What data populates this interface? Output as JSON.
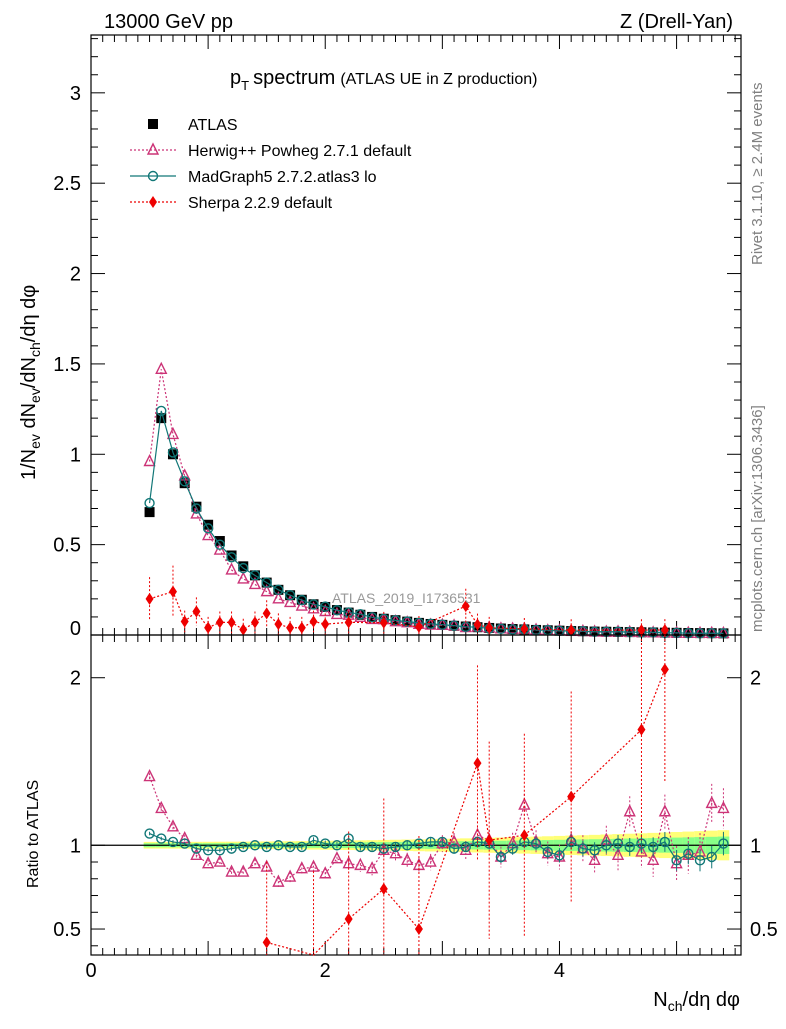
{
  "header": {
    "left": "13000 GeV pp",
    "right": "Z (Drell-Yan)"
  },
  "side_labels": {
    "rivet": "Rivet 3.1.10, ≥ 2.4M events",
    "mcplots": "mcplots.cern.ch [arXiv:1306.3436]"
  },
  "colors": {
    "atlas": "#000000",
    "herwig": "#cc3377",
    "madgraph": "#117777",
    "sherpa": "#ee0000",
    "band_green": "#88ff88",
    "band_yellow": "#ffff77"
  },
  "chart_data": [
    {
      "type": "scatter",
      "panel": "main",
      "title_main": "p",
      "title_sub": "T",
      "title_rest": "spectrum",
      "title_extra": "(ATLAS UE in Z production)",
      "ylabel": "1/N_ev dN_ev/dN_ch/dη dφ",
      "xlabel": "N_ch/dη dφ",
      "watermark": "ATLAS_2019_I1736531",
      "xlim": [
        0,
        5.55
      ],
      "ylim": [
        0,
        3.32
      ],
      "yticks": [
        0,
        0.5,
        1,
        1.5,
        2,
        2.5,
        3
      ],
      "ytick_labels": [
        "0",
        "0.5",
        "1",
        "1.5",
        "2",
        "2.5",
        "3"
      ],
      "legend_position": "top-left",
      "series": [
        {
          "name": "ATLAS",
          "key": "atlas",
          "marker": "square",
          "x": [
            0.5,
            0.6,
            0.7,
            0.8,
            0.9,
            1.0,
            1.1,
            1.2,
            1.3,
            1.4,
            1.5,
            1.6,
            1.7,
            1.8,
            1.9,
            2.0,
            2.1,
            2.2,
            2.3,
            2.4,
            2.5,
            2.6,
            2.7,
            2.8,
            2.9,
            3.0,
            3.1,
            3.2,
            3.3,
            3.4,
            3.5,
            3.6,
            3.7,
            3.8,
            3.9,
            4.0,
            4.1,
            4.2,
            4.3,
            4.4,
            4.5,
            4.6,
            4.7,
            4.8,
            4.9,
            5.0,
            5.1,
            5.2,
            5.3,
            5.4
          ],
          "y": [
            0.68,
            1.2,
            1.0,
            0.84,
            0.71,
            0.61,
            0.52,
            0.44,
            0.38,
            0.33,
            0.29,
            0.25,
            0.22,
            0.195,
            0.17,
            0.155,
            0.138,
            0.124,
            0.112,
            0.1,
            0.09,
            0.082,
            0.074,
            0.067,
            0.061,
            0.056,
            0.051,
            0.047,
            0.043,
            0.039,
            0.036,
            0.033,
            0.031,
            0.028,
            0.026,
            0.024,
            0.022,
            0.021,
            0.019,
            0.018,
            0.017,
            0.016,
            0.015,
            0.014,
            0.013,
            0.012,
            0.011,
            0.0105,
            0.01,
            0.009
          ]
        },
        {
          "name": "Herwig++ Powheg 2.7.1 default",
          "key": "herwig",
          "marker": "triangle",
          "x": [
            0.5,
            0.6,
            0.7,
            0.8,
            0.9,
            1.0,
            1.1,
            1.2,
            1.3,
            1.4,
            1.5,
            1.6,
            1.7,
            1.8,
            1.9,
            2.0,
            2.1,
            2.2,
            2.3,
            2.4,
            2.5,
            2.6,
            2.7,
            2.8,
            2.9,
            3.0,
            3.1,
            3.2,
            3.3,
            3.4,
            3.5,
            3.6,
            3.7,
            3.8,
            3.9,
            4.0,
            4.1,
            4.2,
            4.3,
            4.4,
            4.5,
            4.6,
            4.7,
            4.8,
            4.9,
            5.0,
            5.1,
            5.2,
            5.3,
            5.4
          ],
          "y": [
            0.96,
            1.47,
            1.11,
            0.88,
            0.67,
            0.55,
            0.47,
            0.36,
            0.31,
            0.28,
            0.24,
            0.2,
            0.18,
            0.16,
            0.145,
            0.13,
            0.114,
            0.11,
            0.098,
            0.086,
            0.085,
            0.074,
            0.068,
            0.059,
            0.055,
            0.054,
            0.051,
            0.041,
            0.045,
            0.04,
            0.034,
            0.033,
            0.033,
            0.027,
            0.024,
            0.023,
            0.021,
            0.02,
            0.017,
            0.016,
            0.017,
            0.015,
            0.014,
            0.012,
            0.013,
            0.011,
            0.01,
            0.0095,
            0.0095,
            0.0085
          ]
        },
        {
          "name": "MadGraph5 2.7.2.atlas3 lo",
          "key": "madgraph",
          "marker": "circle",
          "x": [
            0.5,
            0.6,
            0.7,
            0.8,
            0.9,
            1.0,
            1.1,
            1.2,
            1.3,
            1.4,
            1.5,
            1.6,
            1.7,
            1.8,
            1.9,
            2.0,
            2.1,
            2.2,
            2.3,
            2.4,
            2.5,
            2.6,
            2.7,
            2.8,
            2.9,
            3.0,
            3.1,
            3.2,
            3.3,
            3.4,
            3.5,
            3.6,
            3.7,
            3.8,
            3.9,
            4.0,
            4.1,
            4.2,
            4.3,
            4.4,
            4.5,
            4.6,
            4.7,
            4.8,
            4.9,
            5.0,
            5.1,
            5.2,
            5.3,
            5.4
          ],
          "y": [
            0.73,
            1.24,
            1.01,
            0.85,
            0.7,
            0.59,
            0.5,
            0.43,
            0.37,
            0.33,
            0.29,
            0.25,
            0.22,
            0.193,
            0.169,
            0.157,
            0.137,
            0.125,
            0.115,
            0.098,
            0.089,
            0.081,
            0.074,
            0.067,
            0.062,
            0.057,
            0.052,
            0.045,
            0.044,
            0.036,
            0.034,
            0.031,
            0.032,
            0.028,
            0.027,
            0.023,
            0.023,
            0.021,
            0.018,
            0.018,
            0.018,
            0.016,
            0.015,
            0.015,
            0.012,
            0.012,
            0.01,
            0.0095,
            0.0095,
            0.009
          ]
        },
        {
          "name": "Sherpa 2.2.9 default",
          "key": "sherpa",
          "marker": "diamond",
          "x": [
            0.5,
            0.7,
            0.8,
            0.9,
            1.0,
            1.1,
            1.2,
            1.3,
            1.4,
            1.5,
            1.6,
            1.7,
            1.8,
            1.9,
            2.0,
            2.2,
            2.5,
            2.8,
            3.2,
            3.3,
            3.4,
            3.7,
            4.1,
            4.7,
            4.9
          ],
          "y": [
            0.2,
            0.24,
            0.075,
            0.13,
            0.04,
            0.07,
            0.07,
            0.03,
            0.07,
            0.12,
            0.06,
            0.04,
            0.04,
            0.075,
            0.06,
            0.07,
            0.068,
            0.045,
            0.16,
            0.058,
            0.04,
            0.034,
            0.027,
            0.027,
            0.028
          ]
        }
      ]
    },
    {
      "type": "scatter",
      "panel": "ratio",
      "ylabel": "Ratio to ATLAS",
      "xlim": [
        0,
        5.55
      ],
      "ylim": [
        0.345,
        2.255
      ],
      "yticks": [
        0.5,
        1,
        2
      ],
      "ytick_labels": [
        "0.5",
        "1",
        "2"
      ],
      "xticks": [
        0,
        2,
        4
      ],
      "xtick_labels": [
        "0",
        "2",
        "4"
      ],
      "series": [
        {
          "name": "Herwig++ Powheg 2.7.1 default",
          "key": "herwig",
          "marker": "triangle",
          "x": [
            0.5,
            0.6,
            0.7,
            0.8,
            0.9,
            1.0,
            1.1,
            1.2,
            1.3,
            1.4,
            1.5,
            1.6,
            1.7,
            1.8,
            1.9,
            2.0,
            2.1,
            2.2,
            2.3,
            2.4,
            2.5,
            2.6,
            2.7,
            2.8,
            2.9,
            3.0,
            3.1,
            3.2,
            3.3,
            3.4,
            3.5,
            3.6,
            3.7,
            3.8,
            3.9,
            4.0,
            4.1,
            4.2,
            4.3,
            4.4,
            4.5,
            4.6,
            4.7,
            4.8,
            4.9,
            5.0,
            5.1,
            5.2,
            5.3,
            5.4
          ],
          "y": [
            1.41,
            1.22,
            1.11,
            1.04,
            0.94,
            0.89,
            0.9,
            0.84,
            0.84,
            0.89,
            0.87,
            0.78,
            0.81,
            0.86,
            0.87,
            0.83,
            0.92,
            0.89,
            0.88,
            0.86,
            0.97,
            0.95,
            0.91,
            0.88,
            0.9,
            1.01,
            1.02,
            0.97,
            1.06,
            1.03,
            0.93,
            1.01,
            1.24,
            1.02,
            0.95,
            0.93,
            1.03,
            0.98,
            0.91,
            1.03,
            0.94,
            1.2,
            0.96,
            0.91,
            1.2,
            0.89,
            0.94,
            0.96,
            1.25,
            1.22
          ]
        },
        {
          "name": "MadGraph5 2.7.2.atlas3 lo",
          "key": "madgraph",
          "marker": "circle",
          "x": [
            0.5,
            0.6,
            0.7,
            0.8,
            0.9,
            1.0,
            1.1,
            1.2,
            1.3,
            1.4,
            1.5,
            1.6,
            1.7,
            1.8,
            1.9,
            2.0,
            2.1,
            2.2,
            2.3,
            2.4,
            2.5,
            2.6,
            2.7,
            2.8,
            2.9,
            3.0,
            3.1,
            3.2,
            3.3,
            3.4,
            3.5,
            3.6,
            3.7,
            3.8,
            3.9,
            4.0,
            4.1,
            4.2,
            4.3,
            4.4,
            4.5,
            4.6,
            4.7,
            4.8,
            4.9,
            5.0,
            5.1,
            5.2,
            5.3,
            5.4
          ],
          "y": [
            1.07,
            1.04,
            1.02,
            1.01,
            0.98,
            0.97,
            0.97,
            0.98,
            0.99,
            1.0,
            0.99,
            1.0,
            0.99,
            0.99,
            1.03,
            1.01,
            1.0,
            1.04,
            0.99,
            0.99,
            0.98,
            0.99,
            1.0,
            1.01,
            1.02,
            1.02,
            0.98,
            0.99,
            1.02,
            1.01,
            0.93,
            0.98,
            1.02,
            1.01,
            0.96,
            0.94,
            1.02,
            0.98,
            0.97,
            1.0,
            1.01,
            0.99,
            1.01,
            0.99,
            1.02,
            0.91,
            0.95,
            0.91,
            0.93,
            1.01
          ]
        },
        {
          "name": "Sherpa 2.2.9 default",
          "key": "sherpa",
          "marker": "diamond",
          "x": [
            1.5,
            1.9,
            2.2,
            2.5,
            2.8,
            3.3,
            3.4,
            3.7,
            4.1,
            4.7,
            4.9
          ],
          "y": [
            0.42,
            0.34,
            0.56,
            0.74,
            0.5,
            1.49,
            1.03,
            1.06,
            1.29,
            1.69,
            2.05
          ]
        }
      ]
    }
  ]
}
